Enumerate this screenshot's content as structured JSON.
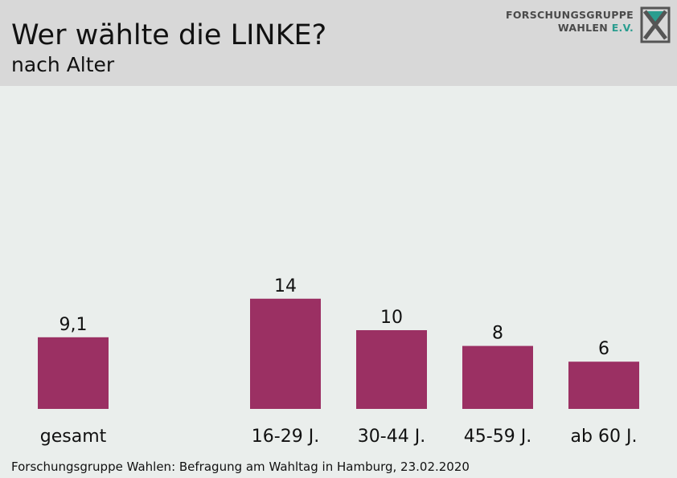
{
  "header": {
    "title": "Wer wählte die LINKE?",
    "subtitle": "nach Alter",
    "logo_line1": "FORSCHUNGSGRUPPE",
    "logo_line2": "WAHLEN",
    "logo_line2_suffix": "E.V."
  },
  "colors": {
    "bar": "#9b3063",
    "accent": "#2a9d8f",
    "header_bg": "#d8d8d8",
    "plot_bg": "#eaeeec"
  },
  "chart_data": {
    "type": "bar",
    "title": "Wer wählte die LINKE?",
    "subtitle": "nach Alter",
    "categories": [
      "gesamt",
      "16-29 J.",
      "30-44 J.",
      "45-59 J.",
      "ab 60 J."
    ],
    "values": [
      9.1,
      14,
      10,
      8,
      6
    ],
    "value_labels": [
      "9,1",
      "14",
      "10",
      "8",
      "6"
    ],
    "xlabel": "",
    "ylabel": "",
    "ylim": [
      0,
      40
    ],
    "grid": false,
    "legend": "none"
  },
  "source": "Forschungsgruppe Wahlen: Befragung am Wahltag in Hamburg, 23.02.2020"
}
